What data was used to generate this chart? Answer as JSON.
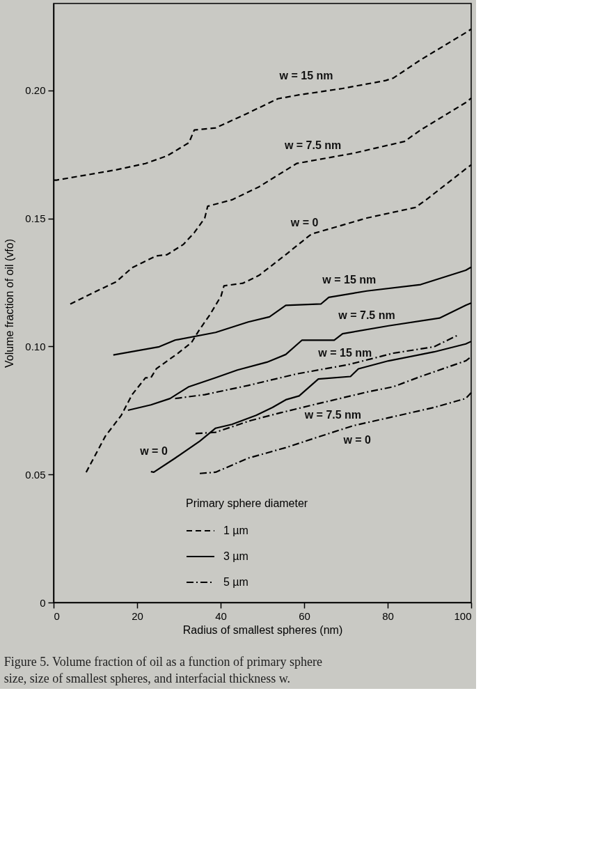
{
  "chart_data": {
    "type": "line",
    "xlabel": "Radius of smallest spheres (nm)",
    "ylabel": "Volume fraction of oil (vfo)",
    "legend_title": "Primary sphere diameter",
    "xlim": [
      0,
      100
    ],
    "xticks": [
      0,
      20,
      40,
      60,
      80,
      100
    ],
    "ylim": [
      0,
      0.234
    ],
    "yticks": [
      0,
      0.05,
      {
        "value": 0.1,
        "label": "0.10"
      },
      0.15,
      {
        "value": 0.2,
        "label": "0.20"
      }
    ],
    "grid": false,
    "legend": "bottom",
    "marker": "none",
    "series": [
      {
        "name": "1 µm",
        "color": "#000000",
        "line_style": "dashed",
        "x": [
          0,
          0.7,
          14.9,
          22.0,
          27.2,
          32.4,
          33.7,
          38.8,
          45.9,
          53.7,
          58.8,
          69.2,
          79.5,
          81.4,
          87.9,
          98.7,
          100
        ],
        "values": [
          0.165,
          0.165,
          0.169,
          0.1715,
          0.1745,
          0.1796,
          0.1846,
          0.1854,
          0.1907,
          0.1968,
          0.1983,
          0.2008,
          0.2039,
          0.2049,
          0.212,
          0.2226,
          0.224
        ]
      },
      {
        "color": "#000000",
        "line_style": "dashed",
        "x": [
          4.0,
          9.1,
          15.0,
          18.8,
          24.6,
          27.2,
          31.1,
          33.7,
          36.2,
          36.9,
          42.7,
          49.2,
          58.2,
          71.8,
          84.0,
          87.9,
          98.7,
          100
        ],
        "values": [
          0.1166,
          0.1207,
          0.1253,
          0.1308,
          0.1354,
          0.1359,
          0.1399,
          0.1445,
          0.1502,
          0.1548,
          0.1573,
          0.1624,
          0.1715,
          0.1755,
          0.1801,
          0.1846,
          0.1953,
          0.197
        ]
      },
      {
        "color": "#000000",
        "line_style": "dashed",
        "x": [
          7.8,
          12.4,
          16.2,
          18.8,
          20.8,
          22.0,
          23.3,
          24.6,
          29.8,
          33.0,
          34.9,
          37.5,
          40.1,
          40.8,
          45.3,
          49.2,
          55.6,
          61.4,
          62.1,
          75.0,
          86.6,
          89.2,
          98.7,
          100
        ],
        "values": [
          0.0509,
          0.065,
          0.0731,
          0.0812,
          0.0853,
          0.0878,
          0.0878,
          0.0913,
          0.0974,
          0.1015,
          0.1065,
          0.1126,
          0.1197,
          0.1237,
          0.1247,
          0.1278,
          0.1359,
          0.1435,
          0.1441,
          0.1502,
          0.1543,
          0.1573,
          0.1694,
          0.171
        ]
      },
      {
        "name": "3 µm",
        "color": "#000000",
        "line_style": "solid",
        "x": [
          14.3,
          25.3,
          29.1,
          38.8,
          46.6,
          51.7,
          55.6,
          64.0,
          65.9,
          75.0,
          87.9,
          98.7,
          100
        ],
        "values": [
          0.0967,
          0.0999,
          0.1025,
          0.1055,
          0.1096,
          0.1116,
          0.1161,
          0.1166,
          0.1192,
          0.1217,
          0.1242,
          0.1298,
          0.131
        ]
      },
      {
        "color": "#000000",
        "line_style": "solid",
        "x": [
          17.8,
          23.3,
          27.9,
          32.4,
          38.8,
          44.0,
          51.1,
          55.6,
          59.5,
          67.2,
          69.2,
          80.2,
          92.4,
          98.7,
          100
        ],
        "values": [
          0.0751,
          0.0772,
          0.0797,
          0.0843,
          0.0878,
          0.0908,
          0.0939,
          0.0969,
          0.1025,
          0.1025,
          0.105,
          0.1081,
          0.1111,
          0.1161,
          0.117
        ]
      },
      {
        "color": "#000000",
        "line_style": "solid",
        "x": [
          23.3,
          24.0,
          29.1,
          35.0,
          38.8,
          42.7,
          48.5,
          52.4,
          55.6,
          58.8,
          63.4,
          71.1,
          73.0,
          80.2,
          91.1,
          98.7,
          100
        ],
        "values": [
          0.0511,
          0.0509,
          0.0564,
          0.063,
          0.0681,
          0.0696,
          0.0731,
          0.0762,
          0.0792,
          0.0807,
          0.0873,
          0.0883,
          0.0913,
          0.0944,
          0.0979,
          0.101,
          0.102
        ]
      },
      {
        "name": "5 µm",
        "color": "#000000",
        "line_style": "dashdot",
        "x": [
          29.1,
          36.2,
          46.6,
          58.2,
          70.5,
          81.4,
          91.1,
          96.9
        ],
        "values": [
          0.0797,
          0.0812,
          0.0848,
          0.0893,
          0.0929,
          0.0974,
          0.0999,
          0.1045
        ]
      },
      {
        "color": "#000000",
        "line_style": "dashdot",
        "x": [
          34.0,
          38.8,
          47.2,
          54.3,
          62.1,
          75.0,
          81.4,
          87.9,
          98.7,
          100
        ],
        "values": [
          0.066,
          0.0665,
          0.0711,
          0.0741,
          0.0772,
          0.0822,
          0.0843,
          0.0883,
          0.0944,
          0.096
        ]
      },
      {
        "color": "#000000",
        "line_style": "dashdot",
        "x": [
          35.0,
          38.8,
          46.6,
          55.6,
          62.1,
          71.8,
          81.4,
          91.1,
          98.7,
          100
        ],
        "values": [
          0.0504,
          0.0509,
          0.0564,
          0.0605,
          0.064,
          0.0691,
          0.0726,
          0.0762,
          0.0797,
          0.082
        ]
      }
    ],
    "annotations": [
      {
        "text": "w = 15 nm",
        "x": 60.5,
        "y": 0.1997
      },
      {
        "text": "w = 7.5 nm",
        "x": 62.1,
        "y": 0.1726
      },
      {
        "text": "w = 0",
        "x": 60.1,
        "y": 0.1418
      },
      {
        "text": "w = 15 nm",
        "x": 70.8,
        "y": 0.1205
      },
      {
        "text": "w = 7.5 nm",
        "x": 75.0,
        "y": 0.1066
      },
      {
        "text": "w = 15 nm",
        "x": 69.8,
        "y": 0.0926
      },
      {
        "text": "w = 7.5 nm",
        "x": 66.9,
        "y": 0.0785
      },
      {
        "text": "w = 0",
        "x": 72.7,
        "y": 0.0694
      },
      {
        "text": "w = 0",
        "x": 24.0,
        "y": 0.0509
      },
      "Figure 5.  Volume fraction of oil as a function of primary sphere size, size of smallest spheres, and interfacial thickness w."
    ]
  }
}
